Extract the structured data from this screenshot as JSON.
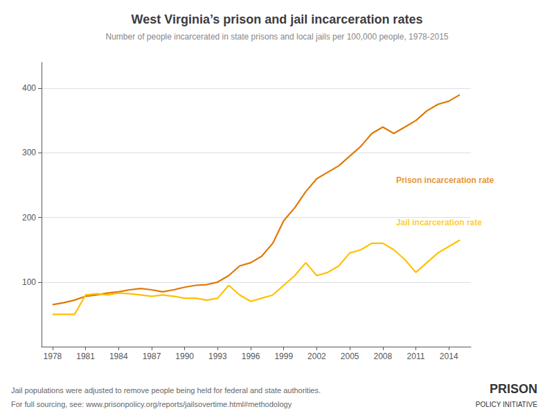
{
  "chart_data": {
    "type": "line",
    "title": "West Virginia’s prison and jail incarceration rates",
    "subtitle": "Number of people incarcerated in state prisons and local jails per 100,000 people, 1978-2015",
    "footnotes": [
      "Jail populations were adjusted to remove people being held for federal and state authorities.",
      "For full sourcing, see: www.prisonpolicy.org/reports/jailsovertime.html#methodology"
    ],
    "source_logo": [
      "PRISON",
      "POLICY INITIATIVE"
    ],
    "x": [
      1978,
      1979,
      1980,
      1981,
      1982,
      1983,
      1984,
      1985,
      1986,
      1987,
      1988,
      1989,
      1990,
      1991,
      1992,
      1993,
      1994,
      1995,
      1996,
      1997,
      1998,
      1999,
      2000,
      2001,
      2002,
      2003,
      2004,
      2005,
      2006,
      2007,
      2008,
      2009,
      2010,
      2011,
      2012,
      2013,
      2014,
      2015
    ],
    "series": [
      {
        "name": "Prison incarceration rate",
        "color": "#e07800",
        "values": [
          65,
          68,
          72,
          78,
          80,
          83,
          85,
          88,
          90,
          88,
          85,
          88,
          92,
          95,
          96,
          100,
          110,
          125,
          130,
          140,
          160,
          195,
          215,
          240,
          260,
          270,
          280,
          295,
          310,
          330,
          340,
          330,
          340,
          350,
          365,
          375,
          380,
          390
        ]
      },
      {
        "name": "Jail incarceration rate",
        "color": "#ffc000",
        "values": [
          50,
          50,
          50,
          80,
          82,
          80,
          83,
          82,
          80,
          78,
          80,
          78,
          75,
          75,
          72,
          75,
          95,
          80,
          70,
          75,
          80,
          95,
          110,
          130,
          110,
          115,
          125,
          145,
          150,
          160,
          160,
          150,
          135,
          115,
          130,
          145,
          155,
          165
        ]
      }
    ],
    "annotations": [
      {
        "text": "Prison incarceration rate",
        "x": 2009.2,
        "y": 258,
        "color": "#e07800"
      },
      {
        "text": "Jail incarceration rate",
        "x": 2009.2,
        "y": 192,
        "color": "#ffc000"
      }
    ],
    "xlim": [
      1977,
      2016
    ],
    "xticks": [
      1978,
      1981,
      1984,
      1987,
      1990,
      1993,
      1996,
      1999,
      2002,
      2005,
      2008,
      2011,
      2014
    ],
    "ylim": [
      0,
      440
    ],
    "yticks": [
      100,
      200,
      300,
      400
    ],
    "grid": true
  }
}
